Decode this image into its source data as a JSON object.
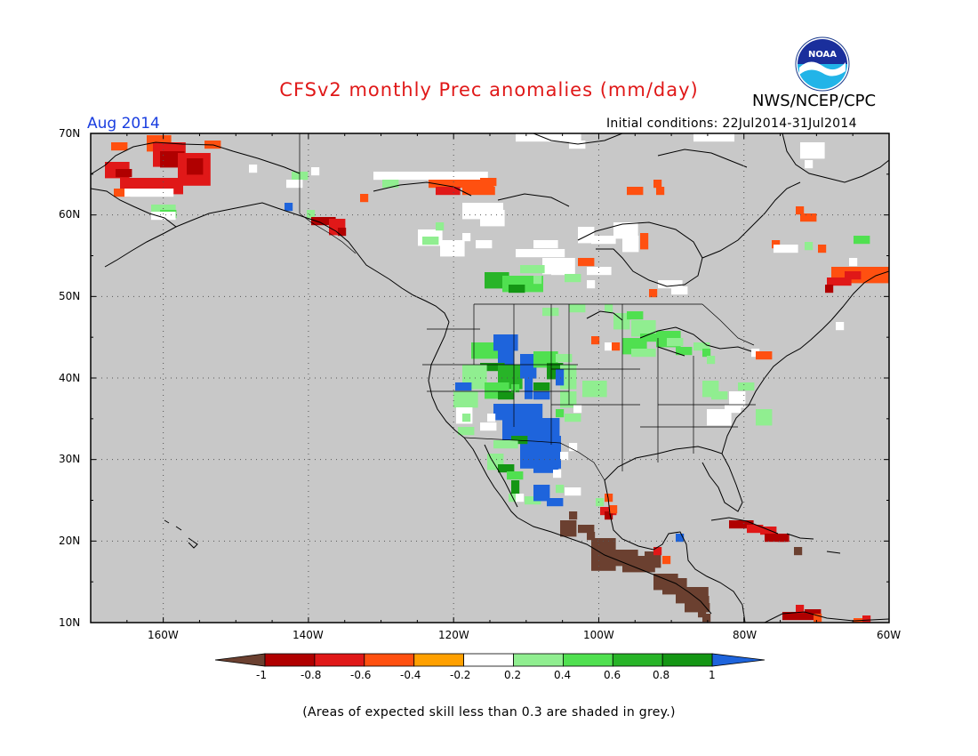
{
  "header": {
    "title": "CFSv2 monthly Prec anomalies (mm/day)",
    "agency": "NWS/NCEP/CPC",
    "logo_text": "NOAA",
    "month": "Aug 2014",
    "initial_conditions": "Initial conditions: 22Jul2014-31Jul2014"
  },
  "map": {
    "lat_labels": [
      "70N",
      "60N",
      "50N",
      "40N",
      "30N",
      "20N",
      "10N"
    ],
    "lon_labels": [
      "160W",
      "140W",
      "120W",
      "100W",
      "80W",
      "60W"
    ],
    "lat_range": [
      10,
      70
    ],
    "lon_range": [
      -170,
      -60
    ],
    "background_color": "#c8c8c8",
    "grid": "dotted"
  },
  "colorbar": {
    "ticks": [
      "-1",
      "-0.8",
      "-0.6",
      "-0.4",
      "-0.2",
      "0.2",
      "0.4",
      "0.6",
      "0.8",
      "1"
    ],
    "colors": [
      "#6b4030",
      "#b00000",
      "#e01818",
      "#ff5010",
      "#ffa000",
      "#ffffff",
      "#90ee90",
      "#50e050",
      "#28b428",
      "#149614",
      "#1e64dc"
    ]
  },
  "footnote": "(Areas of expected skill less than 0.3 are shaded in grey.)"
}
